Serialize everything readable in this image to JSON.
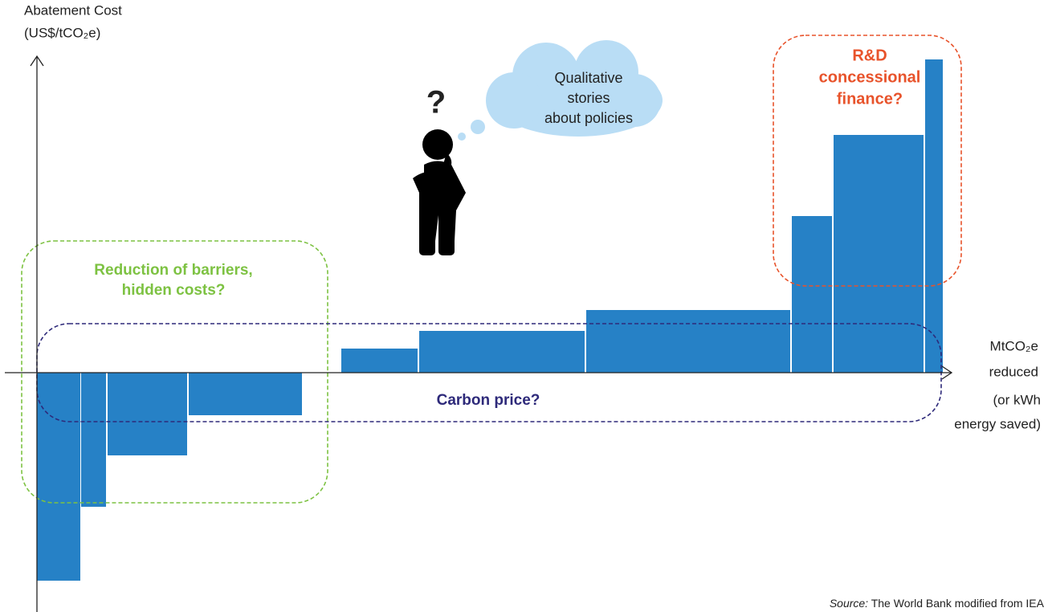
{
  "y_axis": {
    "label_lines": [
      "Abatement Cost",
      "(US$/tCO₂e)"
    ]
  },
  "x_axis": {
    "label_lines": [
      "MtCO₂e",
      "reduced"
    ],
    "note_lines": [
      "(or kWh",
      "energy saved)"
    ]
  },
  "thinker": {
    "symbol": "?"
  },
  "cloud": {
    "lines": [
      "Qualitative",
      "stories",
      "about policies"
    ]
  },
  "green_box": {
    "lines": [
      "Reduction of barriers,",
      "hidden costs?"
    ]
  },
  "red_box": {
    "lines": [
      "R&D",
      "concessional",
      "finance?"
    ]
  },
  "navy_box": {
    "label": "Carbon price?"
  },
  "source": {
    "prefix": "Source:",
    "text": "The World Bank modified from IEA"
  }
}
